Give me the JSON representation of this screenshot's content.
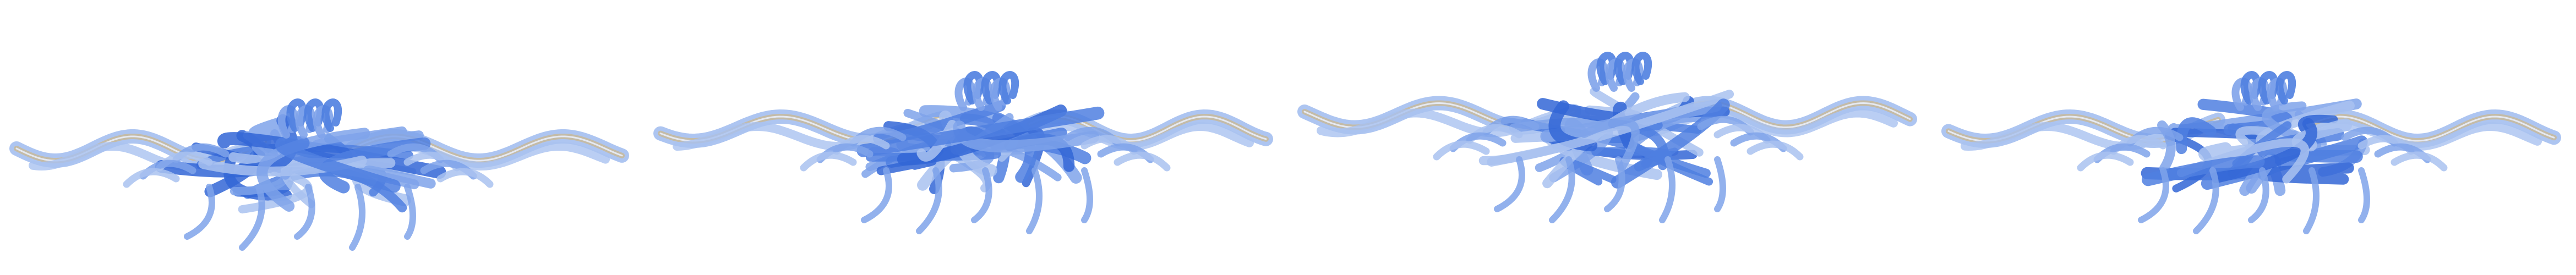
{
  "scene": {
    "views": [
      {
        "id": "view-1"
      },
      {
        "id": "view-2"
      },
      {
        "id": "view-3"
      },
      {
        "id": "view-4"
      }
    ]
  },
  "colors": {
    "background": "#ffffff",
    "ribbon_light": "#a9c2f0",
    "ribbon_mid": "#7fa3ea",
    "ribbon_dark": "#4f7fe0",
    "ribbon_core": "#3366d6",
    "strand_tan": "#c8b89a",
    "strand_highlight": "#e9eefb"
  },
  "icons": {
    "structure": "molecular-ribbon-render"
  }
}
